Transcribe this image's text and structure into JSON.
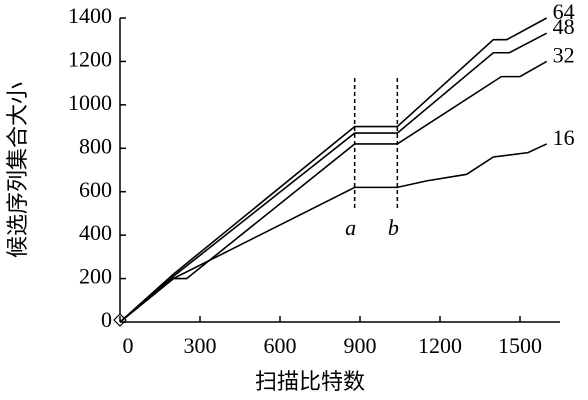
{
  "chart_data": {
    "type": "line",
    "xlabel": "扫描比特数",
    "ylabel": "候选序列集合大小",
    "xlim": [
      0,
      1650
    ],
    "ylim": [
      0,
      1400
    ],
    "xticks": [
      0,
      300,
      600,
      900,
      1200,
      1500
    ],
    "yticks": [
      0,
      200,
      400,
      600,
      800,
      1000,
      1200,
      1400
    ],
    "series": [
      {
        "name": "64",
        "color": "#000000",
        "x": [
          0,
          200,
          880,
          1040,
          1400,
          1450,
          1600
        ],
        "values": [
          0,
          220,
          900,
          900,
          1300,
          1300,
          1400
        ]
      },
      {
        "name": "48",
        "color": "#000000",
        "x": [
          0,
          200,
          880,
          1040,
          1400,
          1460,
          1600
        ],
        "values": [
          0,
          210,
          870,
          870,
          1240,
          1240,
          1330
        ]
      },
      {
        "name": "32",
        "color": "#000000",
        "x": [
          0,
          200,
          250,
          880,
          1040,
          1430,
          1500,
          1600
        ],
        "values": [
          0,
          200,
          200,
          820,
          820,
          1130,
          1130,
          1200
        ]
      },
      {
        "name": "16",
        "color": "#000000",
        "x": [
          0,
          200,
          880,
          1040,
          1150,
          1300,
          1400,
          1530,
          1600
        ],
        "values": [
          0,
          200,
          620,
          620,
          650,
          680,
          760,
          780,
          820
        ]
      }
    ],
    "annotations": [
      {
        "text": "a",
        "x": 880
      },
      {
        "text": "b",
        "x": 1040
      }
    ]
  }
}
